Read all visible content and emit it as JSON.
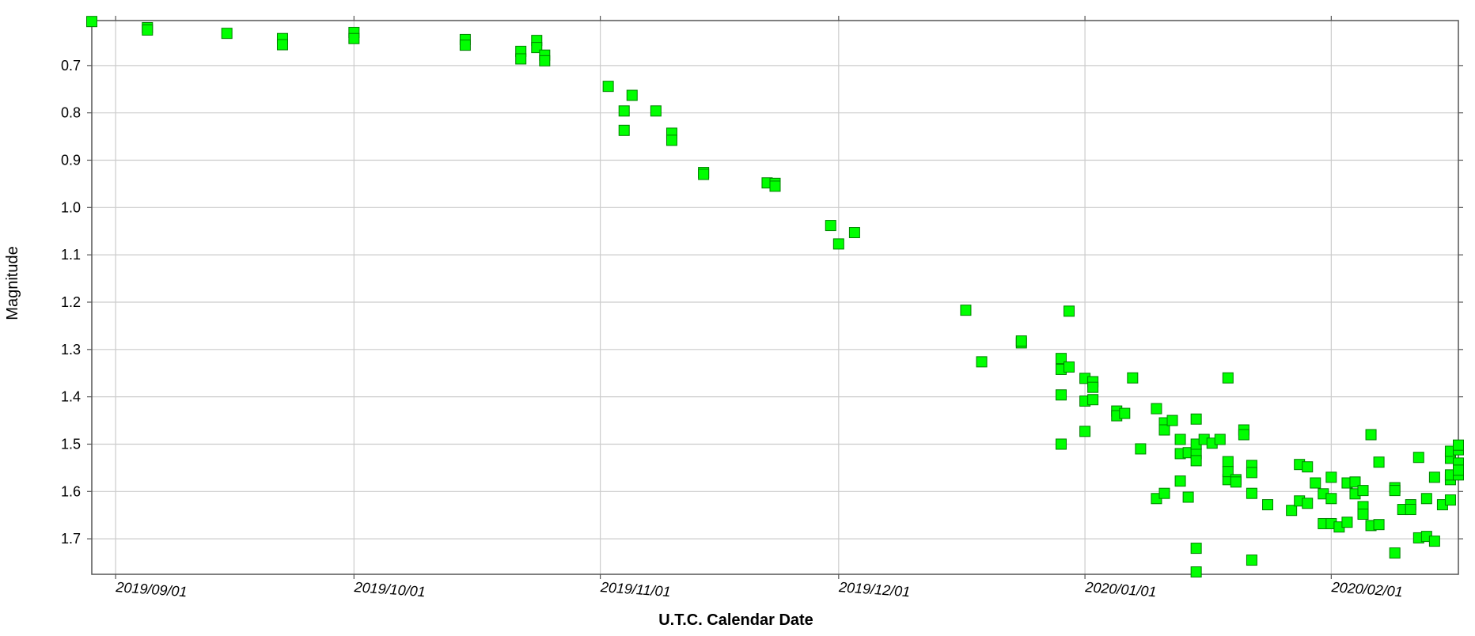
{
  "chart_data": {
    "type": "scatter",
    "xlabel": "U.T.C. Calendar Date",
    "ylabel": "Magnitude",
    "x_axis": {
      "type": "date",
      "range": [
        "2019-08-29",
        "2020-02-17"
      ],
      "ticks": [
        "2019-09-01",
        "2019-10-01",
        "2019-11-01",
        "2019-12-01",
        "2020-01-01",
        "2020-02-01"
      ],
      "tick_labels": [
        "2019/09/01",
        "2019/10/01",
        "2019/11/01",
        "2019/12/01",
        "2020/01/01",
        "2020/02/01"
      ]
    },
    "y_axis": {
      "inverted": true,
      "range": [
        0.605,
        1.775
      ],
      "ticks": [
        0.7,
        0.8,
        0.9,
        1.0,
        1.1,
        1.2,
        1.3,
        1.4,
        1.5,
        1.6,
        1.7
      ],
      "tick_labels": [
        "0.7",
        "0.8",
        "0.9",
        "1.0",
        "1.1",
        "1.2",
        "1.3",
        "1.4",
        "1.5",
        "1.6",
        "1.7"
      ]
    },
    "grid": true,
    "marker": {
      "shape": "square",
      "fill": "#00ff00",
      "stroke": "#008000"
    },
    "colors": {
      "gridline": "#cccccc",
      "frame": "#555555"
    },
    "points": [
      [
        "2019-08-29",
        0.607
      ],
      [
        "2019-09-05",
        0.62
      ],
      [
        "2019-09-05",
        0.625
      ],
      [
        "2019-09-15",
        0.632
      ],
      [
        "2019-09-22",
        0.643
      ],
      [
        "2019-09-22",
        0.656
      ],
      [
        "2019-10-01",
        0.63
      ],
      [
        "2019-10-01",
        0.643
      ],
      [
        "2019-10-15",
        0.645
      ],
      [
        "2019-10-15",
        0.657
      ],
      [
        "2019-10-22",
        0.67
      ],
      [
        "2019-10-22",
        0.686
      ],
      [
        "2019-10-24",
        0.647
      ],
      [
        "2019-10-24",
        0.662
      ],
      [
        "2019-10-25",
        0.678
      ],
      [
        "2019-10-25",
        0.69
      ],
      [
        "2019-11-02",
        0.744
      ],
      [
        "2019-11-04",
        0.796
      ],
      [
        "2019-11-04",
        0.837
      ],
      [
        "2019-11-05",
        0.763
      ],
      [
        "2019-11-08",
        0.796
      ],
      [
        "2019-11-10",
        0.843
      ],
      [
        "2019-11-10",
        0.858
      ],
      [
        "2019-11-14",
        0.926
      ],
      [
        "2019-11-14",
        0.93
      ],
      [
        "2019-11-22",
        0.948
      ],
      [
        "2019-11-23",
        0.949
      ],
      [
        "2019-11-23",
        0.955
      ],
      [
        "2019-11-30",
        1.038
      ],
      [
        "2019-12-01",
        1.077
      ],
      [
        "2019-12-03",
        1.053
      ],
      [
        "2019-12-17",
        1.217
      ],
      [
        "2019-12-19",
        1.326
      ],
      [
        "2019-12-24",
        1.286
      ],
      [
        "2019-12-24",
        1.282
      ],
      [
        "2019-12-29",
        1.319
      ],
      [
        "2019-12-29",
        1.342
      ],
      [
        "2019-12-29",
        1.396
      ],
      [
        "2019-12-29",
        1.5
      ],
      [
        "2019-12-30",
        1.219
      ],
      [
        "2019-12-30",
        1.337
      ],
      [
        "2020-01-01",
        1.361
      ],
      [
        "2020-01-01",
        1.409
      ],
      [
        "2020-01-01",
        1.473
      ],
      [
        "2020-01-02",
        1.406
      ],
      [
        "2020-01-02",
        1.368
      ],
      [
        "2020-01-02",
        1.38
      ],
      [
        "2020-01-05",
        1.43
      ],
      [
        "2020-01-05",
        1.44
      ],
      [
        "2020-01-06",
        1.435
      ],
      [
        "2020-01-07",
        1.36
      ],
      [
        "2020-01-08",
        1.51
      ],
      [
        "2020-01-10",
        1.425
      ],
      [
        "2020-01-10",
        1.615
      ],
      [
        "2020-01-11",
        1.604
      ],
      [
        "2020-01-11",
        1.455
      ],
      [
        "2020-01-11",
        1.47
      ],
      [
        "2020-01-12",
        1.45
      ],
      [
        "2020-01-13",
        1.52
      ],
      [
        "2020-01-13",
        1.578
      ],
      [
        "2020-01-13",
        1.49
      ],
      [
        "2020-01-14",
        1.518
      ],
      [
        "2020-01-14",
        1.612
      ],
      [
        "2020-01-15",
        1.52
      ],
      [
        "2020-01-15",
        1.5
      ],
      [
        "2020-01-15",
        1.535
      ],
      [
        "2020-01-15",
        1.447
      ],
      [
        "2020-01-15",
        1.72
      ],
      [
        "2020-01-15",
        1.77
      ],
      [
        "2020-01-16",
        1.49
      ],
      [
        "2020-01-17",
        1.498
      ],
      [
        "2020-01-18",
        1.49
      ],
      [
        "2020-01-19",
        1.36
      ],
      [
        "2020-01-19",
        1.537
      ],
      [
        "2020-01-19",
        1.575
      ],
      [
        "2020-01-19",
        1.558
      ],
      [
        "2020-01-20",
        1.575
      ],
      [
        "2020-01-20",
        1.58
      ],
      [
        "2020-01-21",
        1.47
      ],
      [
        "2020-01-21",
        1.48
      ],
      [
        "2020-01-22",
        1.604
      ],
      [
        "2020-01-22",
        1.545
      ],
      [
        "2020-01-22",
        1.56
      ],
      [
        "2020-01-22",
        1.745
      ],
      [
        "2020-01-24",
        1.628
      ],
      [
        "2020-01-27",
        1.64
      ],
      [
        "2020-01-28",
        1.543
      ],
      [
        "2020-01-28",
        1.62
      ],
      [
        "2020-01-29",
        1.548
      ],
      [
        "2020-01-29",
        1.625
      ],
      [
        "2020-01-30",
        1.582
      ],
      [
        "2020-01-31",
        1.668
      ],
      [
        "2020-01-31",
        1.605
      ],
      [
        "2020-02-01",
        1.57
      ],
      [
        "2020-02-01",
        1.615
      ],
      [
        "2020-02-01",
        1.668
      ],
      [
        "2020-02-02",
        1.675
      ],
      [
        "2020-02-03",
        1.665
      ],
      [
        "2020-02-03",
        1.582
      ],
      [
        "2020-02-04",
        1.58
      ],
      [
        "2020-02-04",
        1.605
      ],
      [
        "2020-02-05",
        1.598
      ],
      [
        "2020-02-05",
        1.632
      ],
      [
        "2020-02-05",
        1.648
      ],
      [
        "2020-02-06",
        1.48
      ],
      [
        "2020-02-06",
        1.672
      ],
      [
        "2020-02-07",
        1.67
      ],
      [
        "2020-02-07",
        1.538
      ],
      [
        "2020-02-09",
        1.592
      ],
      [
        "2020-02-09",
        1.598
      ],
      [
        "2020-02-09",
        1.73
      ],
      [
        "2020-02-10",
        1.638
      ],
      [
        "2020-02-11",
        1.628
      ],
      [
        "2020-02-11",
        1.638
      ],
      [
        "2020-02-12",
        1.698
      ],
      [
        "2020-02-12",
        1.528
      ],
      [
        "2020-02-13",
        1.695
      ],
      [
        "2020-02-13",
        1.615
      ],
      [
        "2020-02-14",
        1.705
      ],
      [
        "2020-02-14",
        1.57
      ],
      [
        "2020-02-15",
        1.628
      ],
      [
        "2020-02-16",
        1.57
      ],
      [
        "2020-02-16",
        1.575
      ],
      [
        "2020-02-16",
        1.618
      ],
      [
        "2020-02-16",
        1.53
      ],
      [
        "2020-02-16",
        1.515
      ],
      [
        "2020-02-16",
        1.565
      ],
      [
        "2020-02-17",
        1.512
      ],
      [
        "2020-02-17",
        1.555
      ],
      [
        "2020-02-17",
        1.565
      ],
      [
        "2020-02-17",
        1.502
      ],
      [
        "2020-02-17",
        1.54
      ],
      [
        "2020-02-17",
        1.555
      ]
    ]
  }
}
